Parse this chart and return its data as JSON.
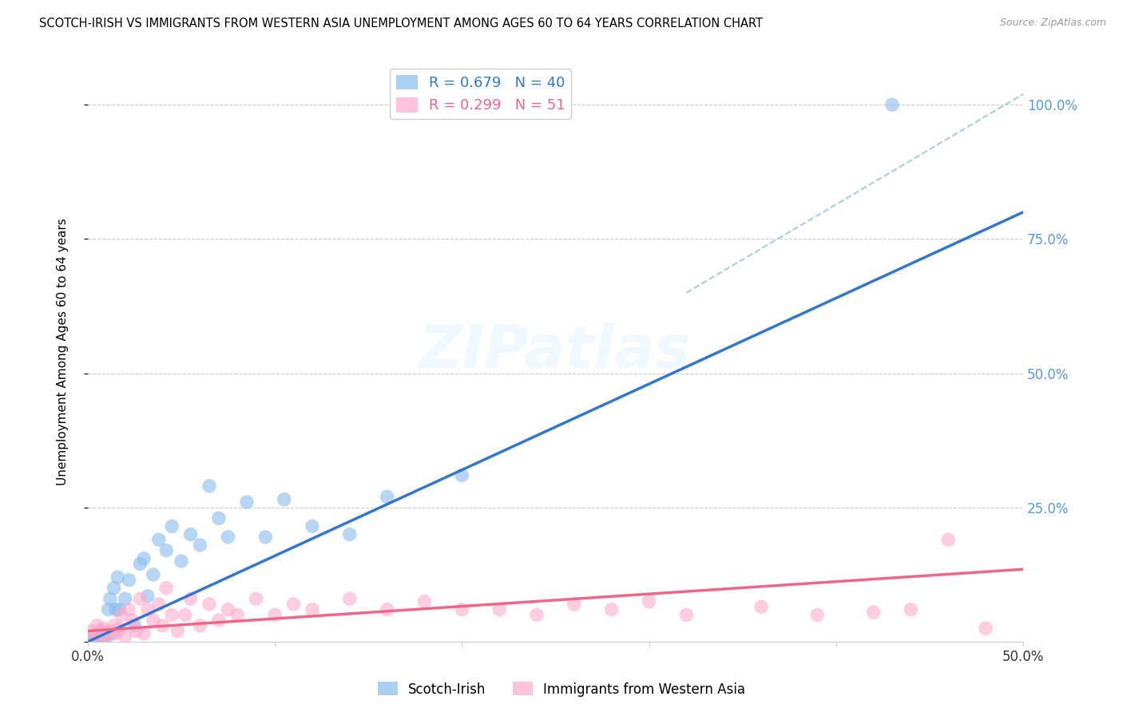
{
  "title": "SCOTCH-IRISH VS IMMIGRANTS FROM WESTERN ASIA UNEMPLOYMENT AMONG AGES 60 TO 64 YEARS CORRELATION CHART",
  "source": "Source: ZipAtlas.com",
  "xlabel": "",
  "ylabel": "Unemployment Among Ages 60 to 64 years",
  "xlim": [
    0.0,
    0.5
  ],
  "ylim": [
    0.0,
    1.08
  ],
  "xticks": [
    0.0,
    0.1,
    0.2,
    0.3,
    0.4,
    0.5
  ],
  "xticklabels": [
    "0.0%",
    "",
    "",
    "",
    "",
    "50.0%"
  ],
  "yticks_right": [
    0.0,
    0.25,
    0.5,
    0.75,
    1.0
  ],
  "yticklabels_right": [
    "",
    "25.0%",
    "50.0%",
    "75.0%",
    "100.0%"
  ],
  "blue_color": "#88BBEE",
  "pink_color": "#FFAACC",
  "blue_line_color": "#3377CC",
  "pink_line_color": "#EE6688",
  "dashed_line_color": "#AACCDD",
  "watermark": "ZIPatlas",
  "legend_blue_R": "R = 0.679",
  "legend_blue_N": "N = 40",
  "legend_pink_R": "R = 0.299",
  "legend_pink_N": "N = 51",
  "blue_line_x0": 0.0,
  "blue_line_y0": 0.0,
  "blue_line_x1": 0.5,
  "blue_line_y1": 0.8,
  "pink_line_x0": 0.0,
  "pink_line_y0": 0.02,
  "pink_line_x1": 0.5,
  "pink_line_y1": 0.135,
  "dash_line_x0": 0.32,
  "dash_line_y0": 0.65,
  "dash_line_x1": 0.505,
  "dash_line_y1": 1.03,
  "scotch_irish_x": [
    0.002,
    0.003,
    0.004,
    0.005,
    0.006,
    0.007,
    0.008,
    0.009,
    0.01,
    0.011,
    0.012,
    0.013,
    0.014,
    0.015,
    0.016,
    0.017,
    0.02,
    0.022,
    0.025,
    0.028,
    0.03,
    0.032,
    0.035,
    0.038,
    0.042,
    0.045,
    0.05,
    0.055,
    0.06,
    0.065,
    0.07,
    0.075,
    0.085,
    0.095,
    0.105,
    0.12,
    0.14,
    0.16,
    0.2,
    0.43
  ],
  "scotch_irish_y": [
    0.005,
    0.01,
    0.005,
    0.015,
    0.01,
    0.02,
    0.01,
    0.005,
    0.015,
    0.06,
    0.08,
    0.015,
    0.1,
    0.06,
    0.12,
    0.06,
    0.08,
    0.115,
    0.03,
    0.145,
    0.155,
    0.085,
    0.125,
    0.19,
    0.17,
    0.215,
    0.15,
    0.2,
    0.18,
    0.29,
    0.23,
    0.195,
    0.26,
    0.195,
    0.265,
    0.215,
    0.2,
    0.27,
    0.31,
    1.0
  ],
  "western_asia_x": [
    0.002,
    0.004,
    0.005,
    0.007,
    0.008,
    0.01,
    0.012,
    0.014,
    0.015,
    0.017,
    0.018,
    0.02,
    0.022,
    0.024,
    0.026,
    0.028,
    0.03,
    0.032,
    0.035,
    0.038,
    0.04,
    0.042,
    0.045,
    0.048,
    0.052,
    0.055,
    0.06,
    0.065,
    0.07,
    0.075,
    0.08,
    0.09,
    0.1,
    0.11,
    0.12,
    0.14,
    0.16,
    0.18,
    0.2,
    0.22,
    0.24,
    0.26,
    0.28,
    0.3,
    0.32,
    0.36,
    0.39,
    0.42,
    0.44,
    0.46,
    0.48
  ],
  "western_asia_y": [
    0.02,
    0.01,
    0.03,
    0.015,
    0.025,
    0.01,
    0.02,
    0.03,
    0.015,
    0.025,
    0.05,
    0.01,
    0.06,
    0.04,
    0.02,
    0.08,
    0.015,
    0.06,
    0.04,
    0.07,
    0.03,
    0.1,
    0.05,
    0.02,
    0.05,
    0.08,
    0.03,
    0.07,
    0.04,
    0.06,
    0.05,
    0.08,
    0.05,
    0.07,
    0.06,
    0.08,
    0.06,
    0.075,
    0.06,
    0.06,
    0.05,
    0.07,
    0.06,
    0.075,
    0.05,
    0.065,
    0.05,
    0.055,
    0.06,
    0.19,
    0.025
  ]
}
